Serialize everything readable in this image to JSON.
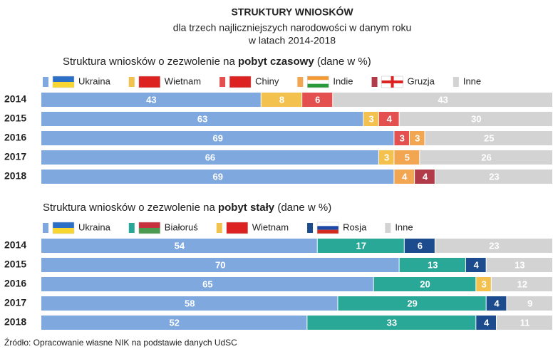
{
  "title": "STRUKTURY WNIOSKÓW",
  "subtitle": [
    "dla trzech najliczniejszych narodowości w danym roku",
    "w latach 2014-2018"
  ],
  "source": "Źródło: Opracowanie własne NIK na podstawie danych UdSC",
  "chart_data": [
    {
      "type": "stacked-bar-horizontal",
      "title": [
        "Struktura wniosków o zezwolenie na ",
        "pobyt czasowy",
        " (dane w %)"
      ],
      "categories": [
        "2014",
        "2015",
        "2016",
        "2017",
        "2018"
      ],
      "xlim": [
        0,
        100
      ],
      "series": [
        {
          "name": "Ukraina",
          "color": "#7ea8de",
          "values": [
            43,
            63,
            69,
            66,
            69
          ]
        },
        {
          "name": "Wietnam",
          "color": "#f2c14e",
          "values": [
            8,
            3,
            null,
            3,
            null
          ]
        },
        {
          "name": "Chiny",
          "color": "#e4504f",
          "values": [
            6,
            4,
            3,
            null,
            null
          ]
        },
        {
          "name": "Indie",
          "color": "#f2a651",
          "values": [
            null,
            null,
            3,
            5,
            4
          ]
        },
        {
          "name": "Gruzja",
          "color": "#b23b4a",
          "values": [
            null,
            null,
            null,
            null,
            4
          ]
        },
        {
          "name": "Inne",
          "color": "#d3d3d3",
          "values": [
            43,
            30,
            25,
            26,
            23
          ]
        }
      ]
    },
    {
      "type": "stacked-bar-horizontal",
      "title": [
        "Struktura wniosków o zezwolenie na ",
        "pobyt stały",
        " (dane w %)"
      ],
      "categories": [
        "2014",
        "2015",
        "2016",
        "2017",
        "2018"
      ],
      "xlim": [
        0,
        100
      ],
      "series": [
        {
          "name": "Ukraina",
          "color": "#7ea8de",
          "values": [
            54,
            70,
            65,
            58,
            52
          ]
        },
        {
          "name": "Białoruś",
          "color": "#2aa897",
          "values": [
            17,
            13,
            20,
            29,
            33
          ]
        },
        {
          "name": "Wietnam",
          "color": "#f2c14e",
          "values": [
            null,
            null,
            3,
            null,
            null
          ]
        },
        {
          "name": "Rosja",
          "color": "#1d4c8e",
          "values": [
            6,
            4,
            null,
            4,
            4
          ]
        },
        {
          "name": "Inne",
          "color": "#d3d3d3",
          "values": [
            23,
            13,
            12,
            9,
            11
          ]
        }
      ]
    }
  ]
}
